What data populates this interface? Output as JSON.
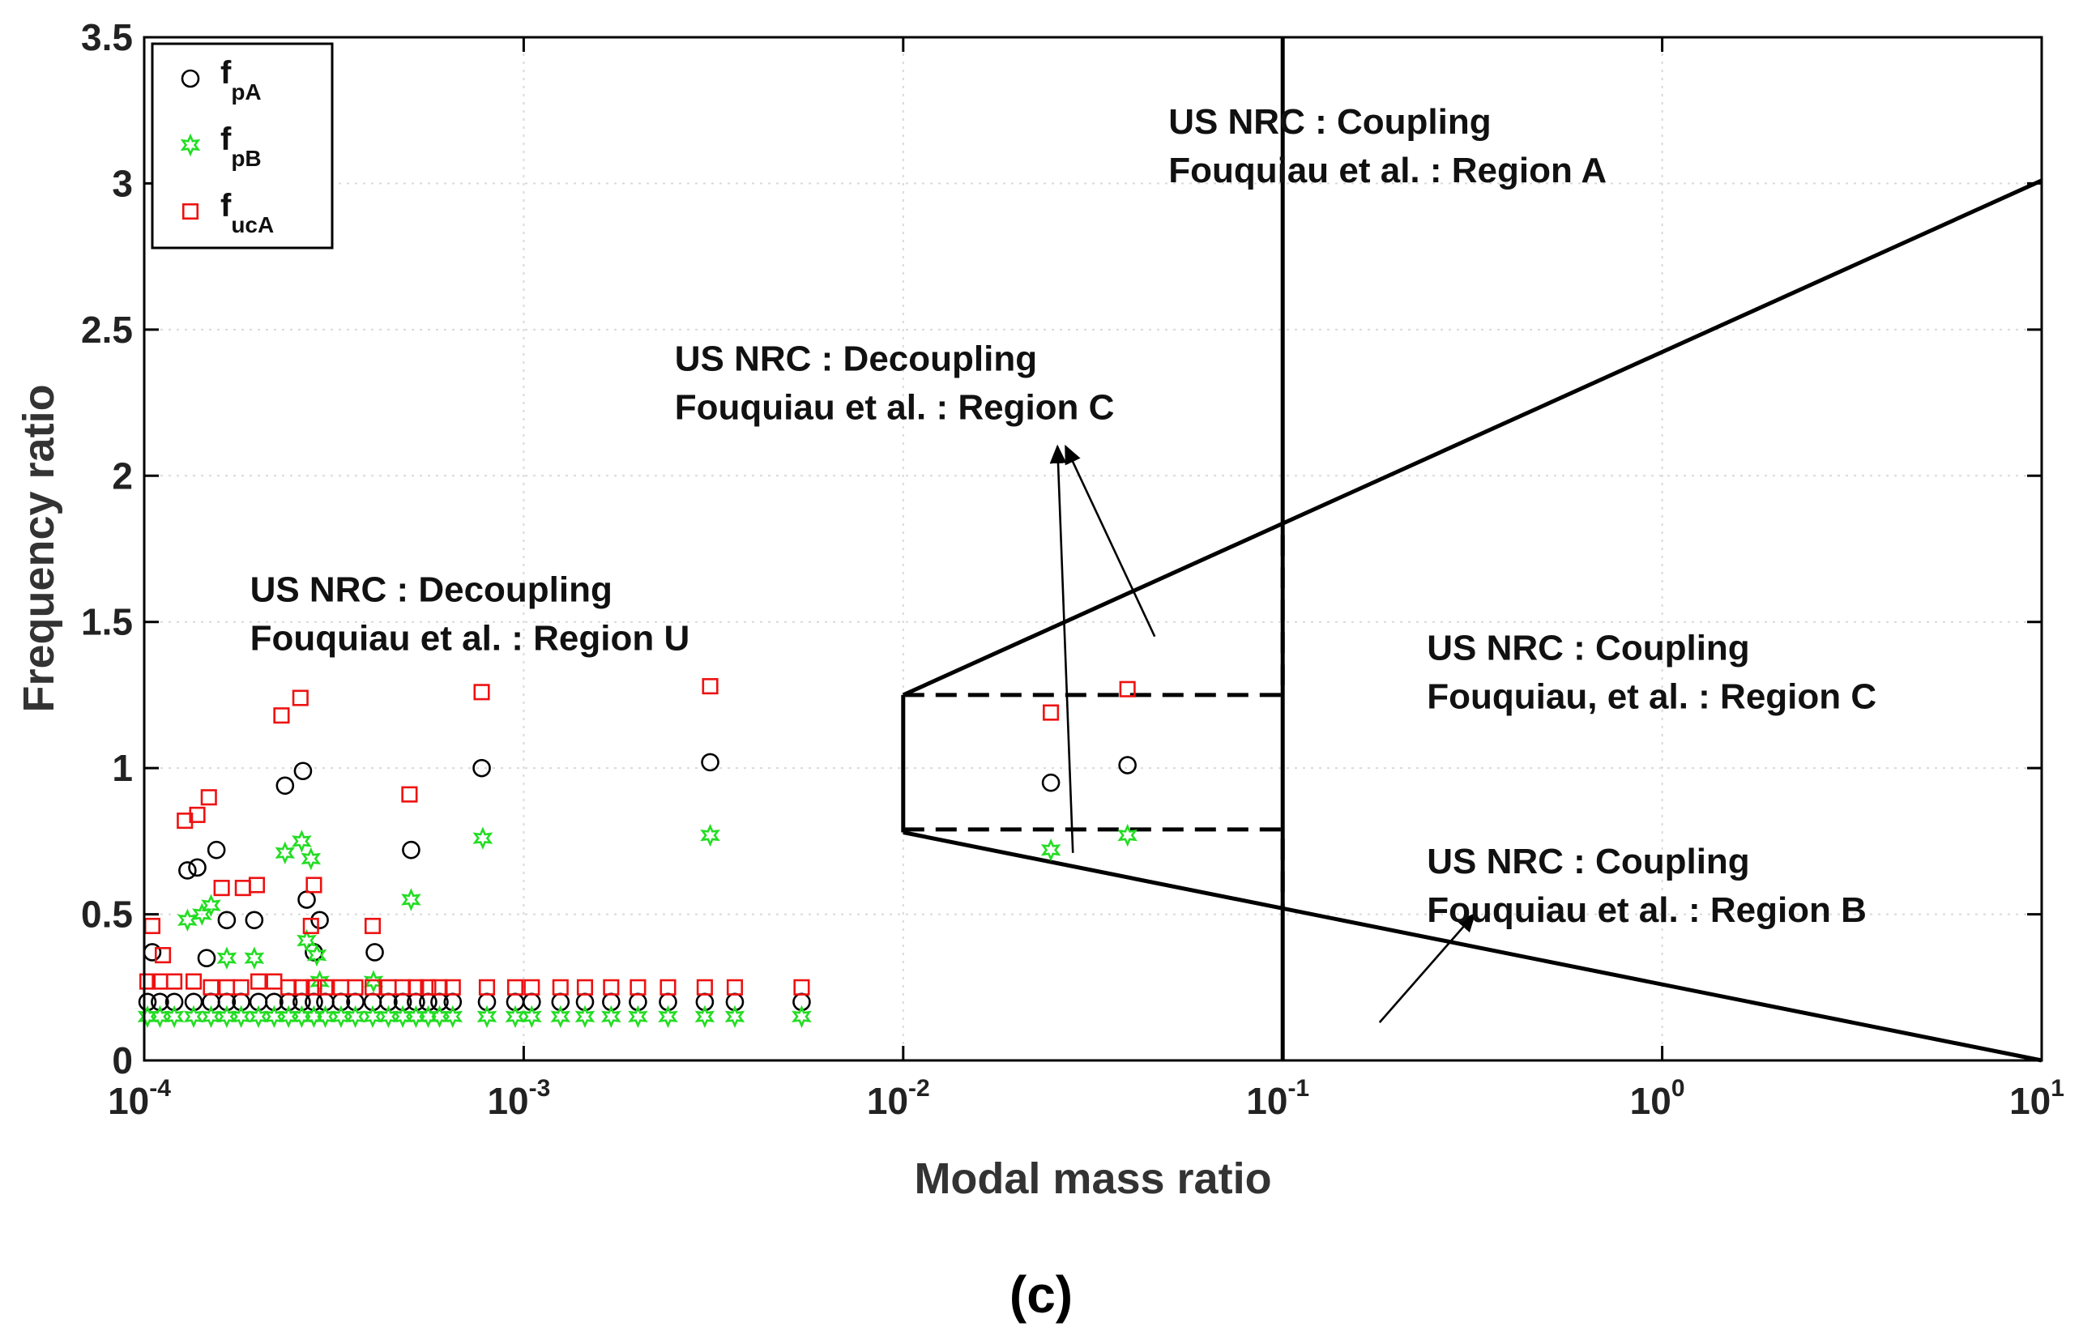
{
  "chart_data": {
    "type": "scatter",
    "title": "",
    "xlabel": "Modal mass ratio",
    "ylabel": "Frequency ratio",
    "xscale": "log",
    "xlim": [
      0.0001,
      10
    ],
    "ylim": [
      0,
      3.5
    ],
    "grid": true,
    "legend_position": "top-left",
    "x_ticks": [
      {
        "base": "10",
        "exp": "-4",
        "value": 0.0001
      },
      {
        "base": "10",
        "exp": "-3",
        "value": 0.001
      },
      {
        "base": "10",
        "exp": "-2",
        "value": 0.01
      },
      {
        "base": "10",
        "exp": "-1",
        "value": 0.1
      },
      {
        "base": "10",
        "exp": "0",
        "value": 1
      },
      {
        "base": "10",
        "exp": "1",
        "value": 10
      }
    ],
    "y_ticks": [
      {
        "label": "0",
        "value": 0
      },
      {
        "label": "0.5",
        "value": 0.5
      },
      {
        "label": "1",
        "value": 1
      },
      {
        "label": "1.5",
        "value": 1.5
      },
      {
        "label": "2",
        "value": 2
      },
      {
        "label": "2.5",
        "value": 2.5
      },
      {
        "label": "3",
        "value": 3
      },
      {
        "label": "3.5",
        "value": 3.5
      }
    ],
    "series": [
      {
        "name": "f",
        "sub": "pA",
        "marker": "circle",
        "color": "#000000",
        "points": [
          [
            0.000105,
            0.37
          ],
          [
            0.00013,
            0.65
          ],
          [
            0.000138,
            0.66
          ],
          [
            0.000146,
            0.35
          ],
          [
            0.000155,
            0.72
          ],
          [
            0.000165,
            0.48
          ],
          [
            0.000195,
            0.48
          ],
          [
            0.000235,
            0.94
          ],
          [
            0.000262,
            0.99
          ],
          [
            0.000268,
            0.55
          ],
          [
            0.00029,
            0.48
          ],
          [
            0.00028,
            0.37
          ],
          [
            0.000405,
            0.37
          ],
          [
            0.000505,
            0.72
          ],
          [
            0.000775,
            1.0
          ],
          [
            0.0031,
            1.02
          ],
          [
            0.0245,
            0.95
          ],
          [
            0.039,
            1.01
          ],
          [
            0.000102,
            0.2
          ],
          [
            0.00011,
            0.2
          ],
          [
            0.00012,
            0.2
          ],
          [
            0.000135,
            0.2
          ],
          [
            0.00015,
            0.2
          ],
          [
            0.000165,
            0.2
          ],
          [
            0.00018,
            0.2
          ],
          [
            0.0002,
            0.2
          ],
          [
            0.00022,
            0.2
          ],
          [
            0.00024,
            0.2
          ],
          [
            0.00026,
            0.2
          ],
          [
            0.00028,
            0.2
          ],
          [
            0.0003,
            0.2
          ],
          [
            0.00033,
            0.2
          ],
          [
            0.00036,
            0.2
          ],
          [
            0.0004,
            0.2
          ],
          [
            0.00044,
            0.2
          ],
          [
            0.00048,
            0.2
          ],
          [
            0.00052,
            0.2
          ],
          [
            0.00056,
            0.2
          ],
          [
            0.0006,
            0.2
          ],
          [
            0.00065,
            0.2
          ],
          [
            0.0008,
            0.2
          ],
          [
            0.00095,
            0.2
          ],
          [
            0.00105,
            0.2
          ],
          [
            0.00125,
            0.2
          ],
          [
            0.00145,
            0.2
          ],
          [
            0.0017,
            0.2
          ],
          [
            0.002,
            0.2
          ],
          [
            0.0024,
            0.2
          ],
          [
            0.003,
            0.2
          ],
          [
            0.0036,
            0.2
          ],
          [
            0.0054,
            0.2
          ]
        ]
      },
      {
        "name": "f",
        "sub": "pB",
        "marker": "star",
        "color": "#22dd22",
        "points": [
          [
            0.00013,
            0.48
          ],
          [
            0.000142,
            0.5
          ],
          [
            0.00015,
            0.53
          ],
          [
            0.000165,
            0.35
          ],
          [
            0.000195,
            0.35
          ],
          [
            0.000235,
            0.71
          ],
          [
            0.00026,
            0.75
          ],
          [
            0.000268,
            0.41
          ],
          [
            0.000275,
            0.69
          ],
          [
            0.000285,
            0.36
          ],
          [
            0.00029,
            0.27
          ],
          [
            0.000402,
            0.27
          ],
          [
            0.000505,
            0.55
          ],
          [
            0.00078,
            0.76
          ],
          [
            0.0031,
            0.77
          ],
          [
            0.0245,
            0.72
          ],
          [
            0.039,
            0.77
          ],
          [
            0.000102,
            0.15
          ],
          [
            0.00011,
            0.15
          ],
          [
            0.00012,
            0.15
          ],
          [
            0.000135,
            0.15
          ],
          [
            0.00015,
            0.15
          ],
          [
            0.000165,
            0.15
          ],
          [
            0.00018,
            0.15
          ],
          [
            0.0002,
            0.15
          ],
          [
            0.00022,
            0.15
          ],
          [
            0.00024,
            0.15
          ],
          [
            0.00026,
            0.15
          ],
          [
            0.00028,
            0.15
          ],
          [
            0.0003,
            0.15
          ],
          [
            0.00033,
            0.15
          ],
          [
            0.00036,
            0.15
          ],
          [
            0.0004,
            0.15
          ],
          [
            0.00044,
            0.15
          ],
          [
            0.00048,
            0.15
          ],
          [
            0.00052,
            0.15
          ],
          [
            0.00056,
            0.15
          ],
          [
            0.0006,
            0.15
          ],
          [
            0.00065,
            0.15
          ],
          [
            0.0008,
            0.15
          ],
          [
            0.00095,
            0.15
          ],
          [
            0.00105,
            0.15
          ],
          [
            0.00125,
            0.15
          ],
          [
            0.00145,
            0.15
          ],
          [
            0.0017,
            0.15
          ],
          [
            0.002,
            0.15
          ],
          [
            0.0024,
            0.15
          ],
          [
            0.003,
            0.15
          ],
          [
            0.0036,
            0.15
          ],
          [
            0.0054,
            0.15
          ]
        ]
      },
      {
        "name": "f",
        "sub": "ucA",
        "marker": "square",
        "color": "#ee1111",
        "points": [
          [
            0.000105,
            0.46
          ],
          [
            0.000112,
            0.36
          ],
          [
            0.000128,
            0.82
          ],
          [
            0.000138,
            0.84
          ],
          [
            0.000148,
            0.9
          ],
          [
            0.00016,
            0.59
          ],
          [
            0.000182,
            0.59
          ],
          [
            0.000198,
            0.6
          ],
          [
            0.00023,
            1.18
          ],
          [
            0.000258,
            1.24
          ],
          [
            0.00028,
            0.6
          ],
          [
            0.000275,
            0.46
          ],
          [
            0.0004,
            0.46
          ],
          [
            0.0005,
            0.91
          ],
          [
            0.000775,
            1.26
          ],
          [
            0.0031,
            1.28
          ],
          [
            0.0245,
            1.19
          ],
          [
            0.039,
            1.27
          ],
          [
            0.000102,
            0.27
          ],
          [
            0.00011,
            0.27
          ],
          [
            0.00012,
            0.27
          ],
          [
            0.000135,
            0.27
          ],
          [
            0.00015,
            0.25
          ],
          [
            0.000165,
            0.25
          ],
          [
            0.00018,
            0.25
          ],
          [
            0.0002,
            0.27
          ],
          [
            0.00022,
            0.27
          ],
          [
            0.00024,
            0.25
          ],
          [
            0.00026,
            0.25
          ],
          [
            0.00028,
            0.25
          ],
          [
            0.0003,
            0.25
          ],
          [
            0.00033,
            0.25
          ],
          [
            0.00036,
            0.25
          ],
          [
            0.0004,
            0.25
          ],
          [
            0.00044,
            0.25
          ],
          [
            0.00048,
            0.25
          ],
          [
            0.00052,
            0.25
          ],
          [
            0.00056,
            0.25
          ],
          [
            0.0006,
            0.25
          ],
          [
            0.00065,
            0.25
          ],
          [
            0.0008,
            0.25
          ],
          [
            0.00095,
            0.25
          ],
          [
            0.00105,
            0.25
          ],
          [
            0.00125,
            0.25
          ],
          [
            0.00145,
            0.25
          ],
          [
            0.0017,
            0.25
          ],
          [
            0.002,
            0.25
          ],
          [
            0.0024,
            0.25
          ],
          [
            0.003,
            0.25
          ],
          [
            0.0036,
            0.25
          ],
          [
            0.0054,
            0.25
          ]
        ]
      }
    ],
    "lines": [
      {
        "name": "vertical-line",
        "style": "solid",
        "points": [
          [
            0.1,
            0
          ],
          [
            0.1,
            3.5
          ]
        ]
      },
      {
        "name": "upper-boundary",
        "style": "solid",
        "points": [
          [
            0.01,
            1.25
          ],
          [
            10,
            3.01
          ]
        ]
      },
      {
        "name": "left-boundary",
        "style": "solid",
        "points": [
          [
            0.01,
            0.78
          ],
          [
            0.01,
            1.25
          ]
        ]
      },
      {
        "name": "lower-boundary",
        "style": "solid",
        "points": [
          [
            0.01,
            0.78
          ],
          [
            10,
            0
          ]
        ]
      },
      {
        "name": "upper-dashed-box",
        "style": "dashed",
        "points": [
          [
            0.01,
            1.25
          ],
          [
            0.1,
            1.25
          ],
          [
            0.1,
            1.84
          ]
        ]
      },
      {
        "name": "lower-dashed-box",
        "style": "dashed",
        "points": [
          [
            0.01,
            0.79
          ],
          [
            0.1,
            0.79
          ],
          [
            0.1,
            0.52
          ]
        ]
      }
    ],
    "annotations": [
      {
        "name": "region-a",
        "lines": [
          "US NRC : Coupling",
          "Fouquiau et al. : Region A"
        ],
        "x": 0.05,
        "y": 3.17
      },
      {
        "name": "region-c-decoupling",
        "lines": [
          "US NRC : Decoupling",
          "Fouquiau et al. : Region C"
        ],
        "x": 0.0025,
        "y": 2.36
      },
      {
        "name": "region-u",
        "lines": [
          "US NRC : Decoupling",
          "Fouquiau et al. : Region U"
        ],
        "x": 0.00019,
        "y": 1.57
      },
      {
        "name": "region-c-coupling",
        "lines": [
          "US NRC : Coupling",
          "Fouquiau, et al. : Region C"
        ],
        "x": 0.24,
        "y": 1.37
      },
      {
        "name": "region-b",
        "lines": [
          "US NRC : Coupling",
          "Fouquiau et al. : Region B"
        ],
        "x": 0.24,
        "y": 0.64
      }
    ],
    "arrows": [
      {
        "name": "arrow-c-left",
        "from": [
          0.028,
          0.71
        ],
        "to": [
          0.0255,
          2.1
        ]
      },
      {
        "name": "arrow-c-right",
        "from": [
          0.046,
          1.45
        ],
        "to": [
          0.0268,
          2.1
        ]
      },
      {
        "name": "arrow-b",
        "from": [
          0.18,
          0.13
        ],
        "to": [
          0.32,
          0.5
        ]
      }
    ]
  },
  "caption": "(c)"
}
